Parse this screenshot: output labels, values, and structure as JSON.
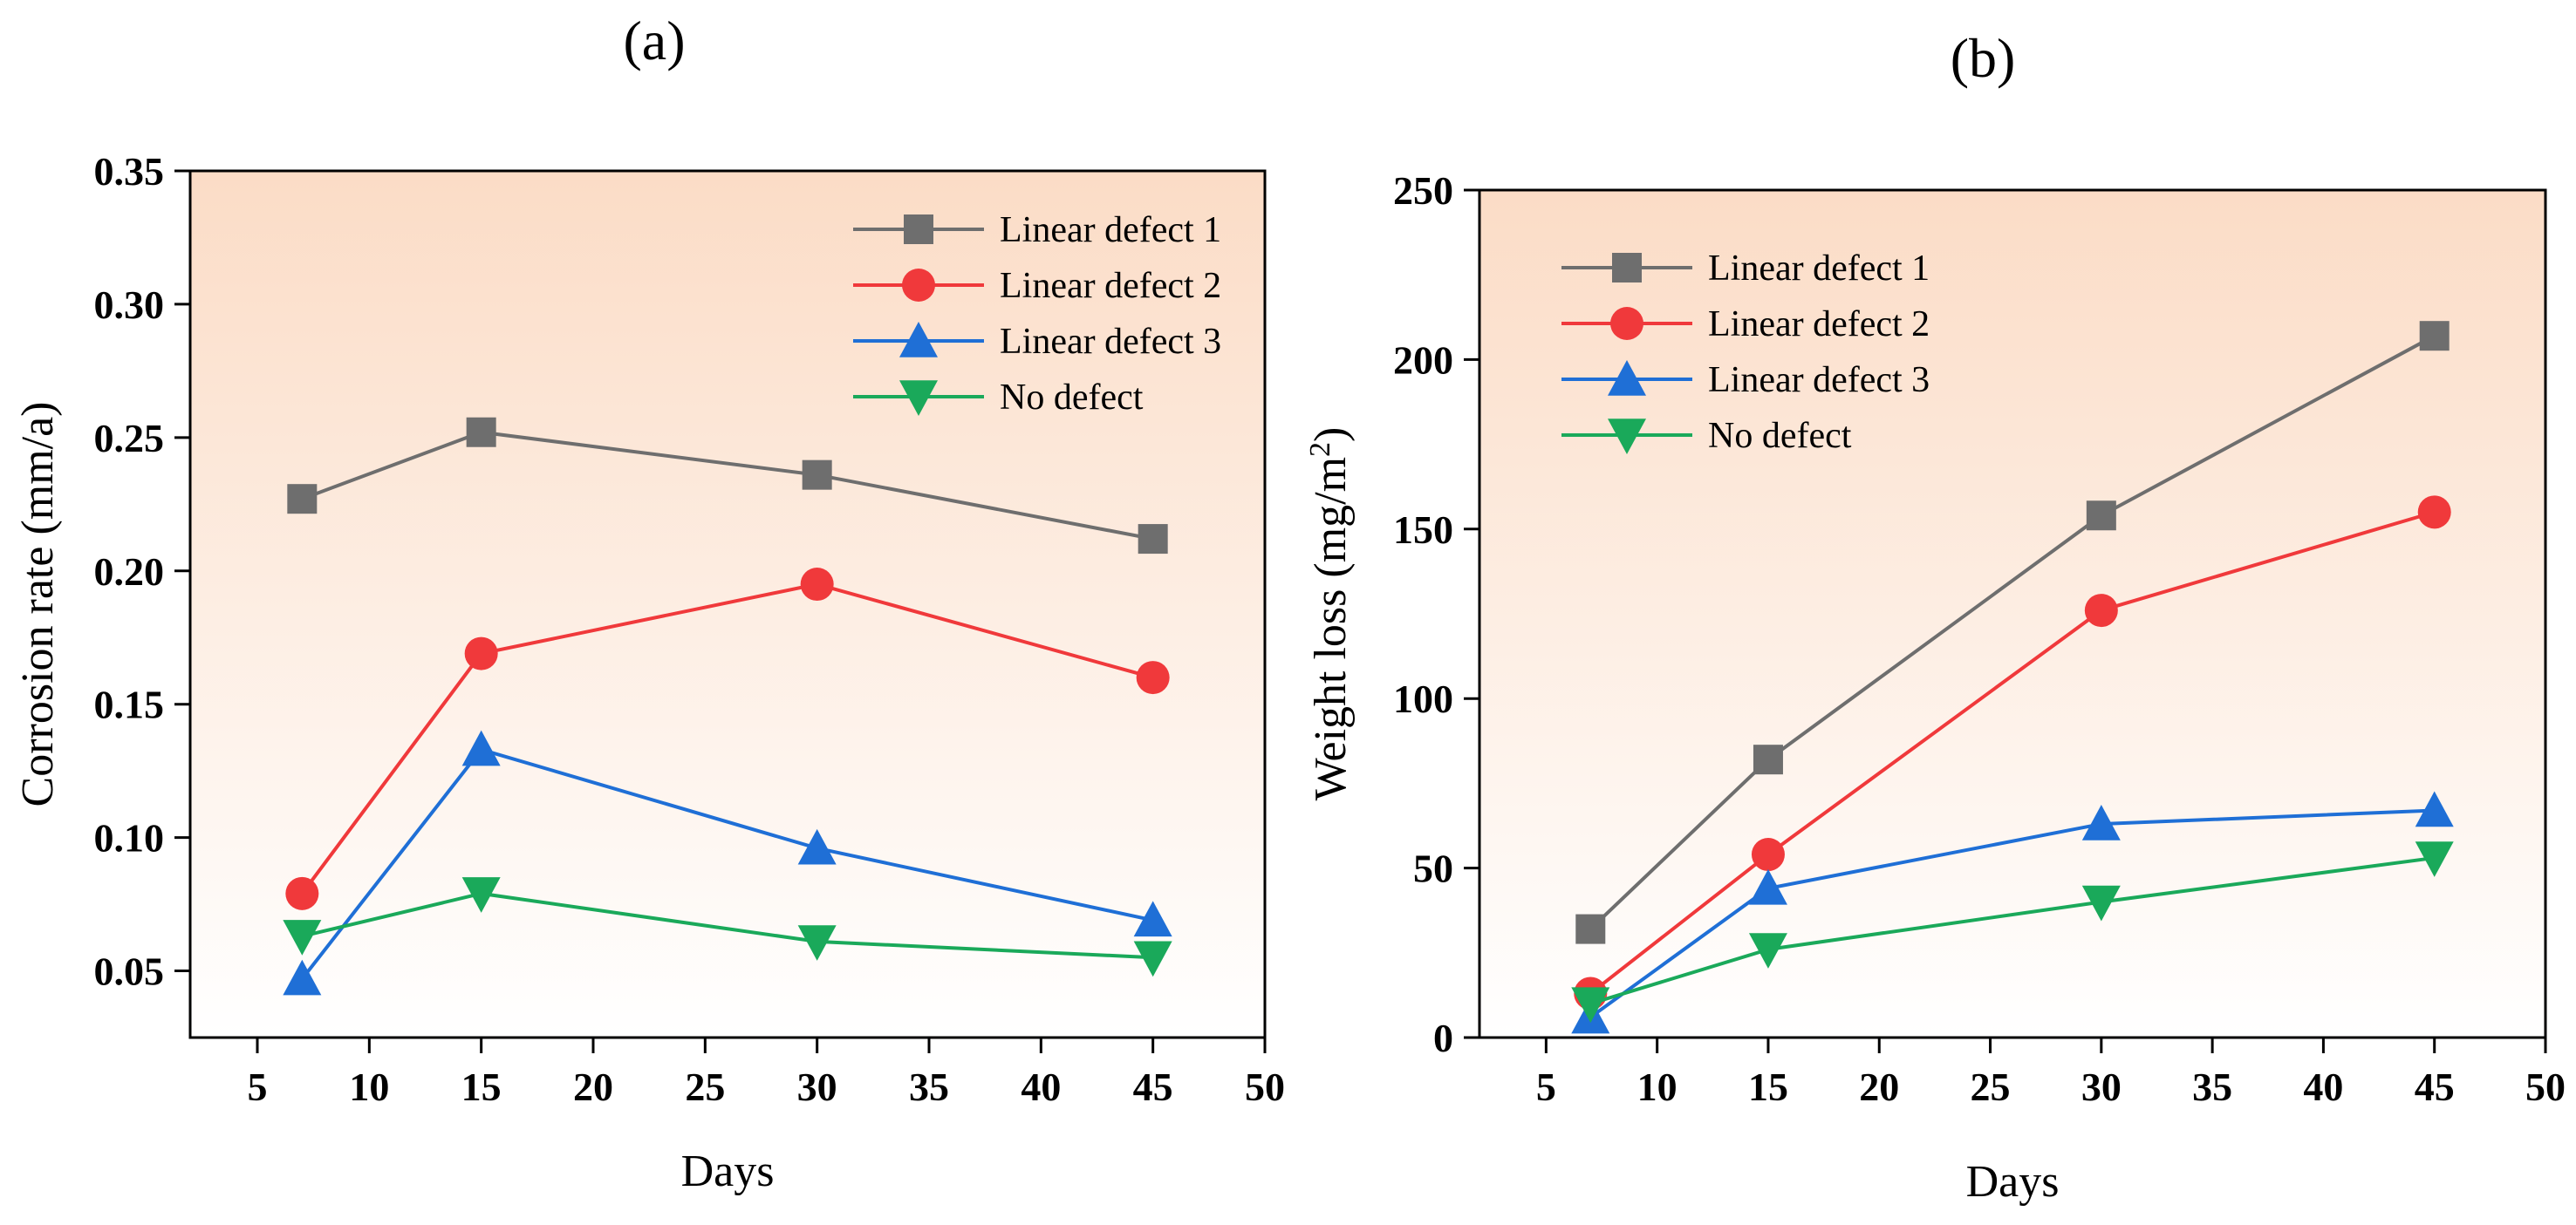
{
  "chart_data": [
    {
      "type": "line",
      "panel_label": "(a)",
      "title": "",
      "xlabel": "Days",
      "ylabel": "Corrosion rate (mm/a)",
      "xlim": [
        2,
        50
      ],
      "ylim": [
        0.025,
        0.35
      ],
      "xticks": [
        5,
        10,
        15,
        20,
        25,
        30,
        35,
        40,
        45,
        50
      ],
      "xtick_labels": [
        "5",
        "10",
        "15",
        "20",
        "25",
        "30",
        "35",
        "40",
        "45",
        "50"
      ],
      "yticks": [
        0.05,
        0.1,
        0.15,
        0.2,
        0.25,
        0.3,
        0.35
      ],
      "ytick_labels": [
        "0.05",
        "0.10",
        "0.15",
        "0.20",
        "0.25",
        "0.30",
        "0.35"
      ],
      "legend_position": "top-right",
      "grid": false,
      "x": [
        7,
        15,
        30,
        45
      ],
      "series": [
        {
          "name": "Linear defect 1",
          "values": [
            0.227,
            0.252,
            0.236,
            0.212
          ],
          "color": "#6e6e6e",
          "marker": "square"
        },
        {
          "name": "Linear defect 2",
          "values": [
            0.079,
            0.169,
            0.195,
            0.16
          ],
          "color": "#f0393b",
          "marker": "circle"
        },
        {
          "name": "Linear defect 3",
          "values": [
            0.047,
            0.133,
            0.096,
            0.069
          ],
          "color": "#1f6fd6",
          "marker": "triangle-up"
        },
        {
          "name": "No defect",
          "values": [
            0.063,
            0.079,
            0.061,
            0.055
          ],
          "color": "#1aa95a",
          "marker": "triangle-down"
        }
      ]
    },
    {
      "type": "line",
      "panel_label": "(b)",
      "title": "",
      "xlabel": "Days",
      "ylabel": "Weight loss (mg/m",
      "ylabel_sup": "2",
      "ylabel_end": ")",
      "xlim": [
        2,
        50
      ],
      "ylim": [
        0,
        250
      ],
      "xticks": [
        5,
        10,
        15,
        20,
        25,
        30,
        35,
        40,
        45,
        50
      ],
      "xtick_labels": [
        "5",
        "10",
        "15",
        "20",
        "25",
        "30",
        "35",
        "40",
        "45",
        "50"
      ],
      "yticks": [
        0,
        50,
        100,
        150,
        200,
        250
      ],
      "ytick_labels": [
        "0",
        "50",
        "100",
        "150",
        "200",
        "250"
      ],
      "legend_position": "top-left",
      "grid": false,
      "x": [
        7,
        15,
        30,
        45
      ],
      "series": [
        {
          "name": "Linear defect 1",
          "values": [
            32,
            82,
            154,
            207
          ],
          "color": "#6e6e6e",
          "marker": "square"
        },
        {
          "name": "Linear defect 2",
          "values": [
            13,
            54,
            126,
            155
          ],
          "color": "#f0393b",
          "marker": "circle"
        },
        {
          "name": "Linear defect 3",
          "values": [
            6,
            44,
            63,
            67
          ],
          "color": "#1f6fd6",
          "marker": "triangle-up"
        },
        {
          "name": "No defect",
          "values": [
            10,
            26,
            40,
            53
          ],
          "color": "#1aa95a",
          "marker": "triangle-down"
        }
      ]
    }
  ],
  "colors": {
    "background_top": "#fbdcc6",
    "background_bottom": "#ffffff"
  }
}
